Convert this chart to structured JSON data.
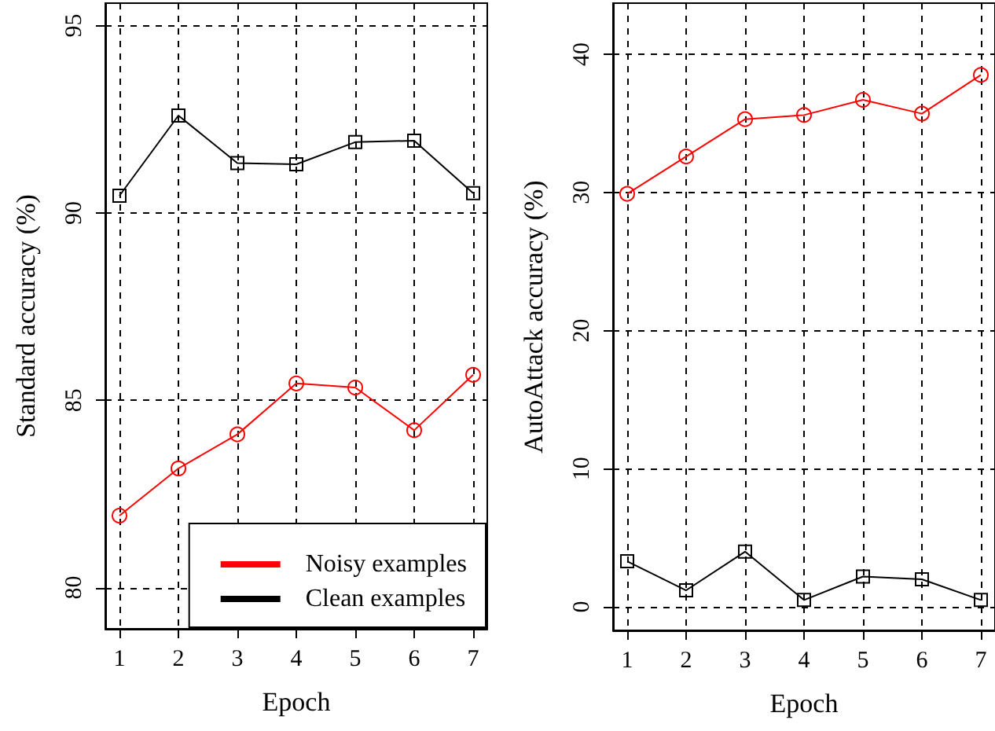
{
  "chart_data": [
    {
      "type": "line",
      "xlabel": "Epoch",
      "ylabel": "Standard accuracy (%)",
      "x": [
        1,
        2,
        3,
        4,
        5,
        6,
        7
      ],
      "xlim": [
        0.76,
        7.24
      ],
      "xticks": [
        1,
        2,
        3,
        4,
        5,
        6,
        7
      ],
      "ylim": [
        78.9,
        95.6
      ],
      "yticks": [
        80,
        85,
        90,
        95
      ],
      "grid": true,
      "legend": "bottom right",
      "series": [
        {
          "name": "Noisy examples",
          "color": "#ff0000",
          "marker": "circle",
          "values": [
            81.92,
            83.18,
            84.09,
            85.45,
            85.34,
            84.2,
            85.68
          ]
        },
        {
          "name": "Clean examples",
          "color": "#000000",
          "marker": "square",
          "values": [
            90.46,
            92.6,
            91.33,
            91.3,
            91.89,
            91.93,
            90.53
          ]
        }
      ]
    },
    {
      "type": "line",
      "xlabel": "Epoch",
      "ylabel": "AutoAttack accuracy (%)",
      "x": [
        1,
        2,
        3,
        4,
        5,
        6,
        7
      ],
      "xlim": [
        0.76,
        7.24
      ],
      "xticks": [
        1,
        2,
        3,
        4,
        5,
        6,
        7
      ],
      "ylim": [
        -1.7,
        43.7
      ],
      "yticks": [
        0,
        10,
        20,
        30,
        40
      ],
      "grid": true,
      "legend": false,
      "series": [
        {
          "color": "#ff0000",
          "marker": "circle",
          "values": [
            29.9,
            32.6,
            35.3,
            35.6,
            36.7,
            35.7,
            38.5
          ]
        },
        {
          "color": "#000000",
          "marker": "square",
          "values": [
            3.3,
            1.2,
            4.0,
            0.5,
            2.2,
            2.0,
            0.5
          ]
        }
      ]
    }
  ]
}
